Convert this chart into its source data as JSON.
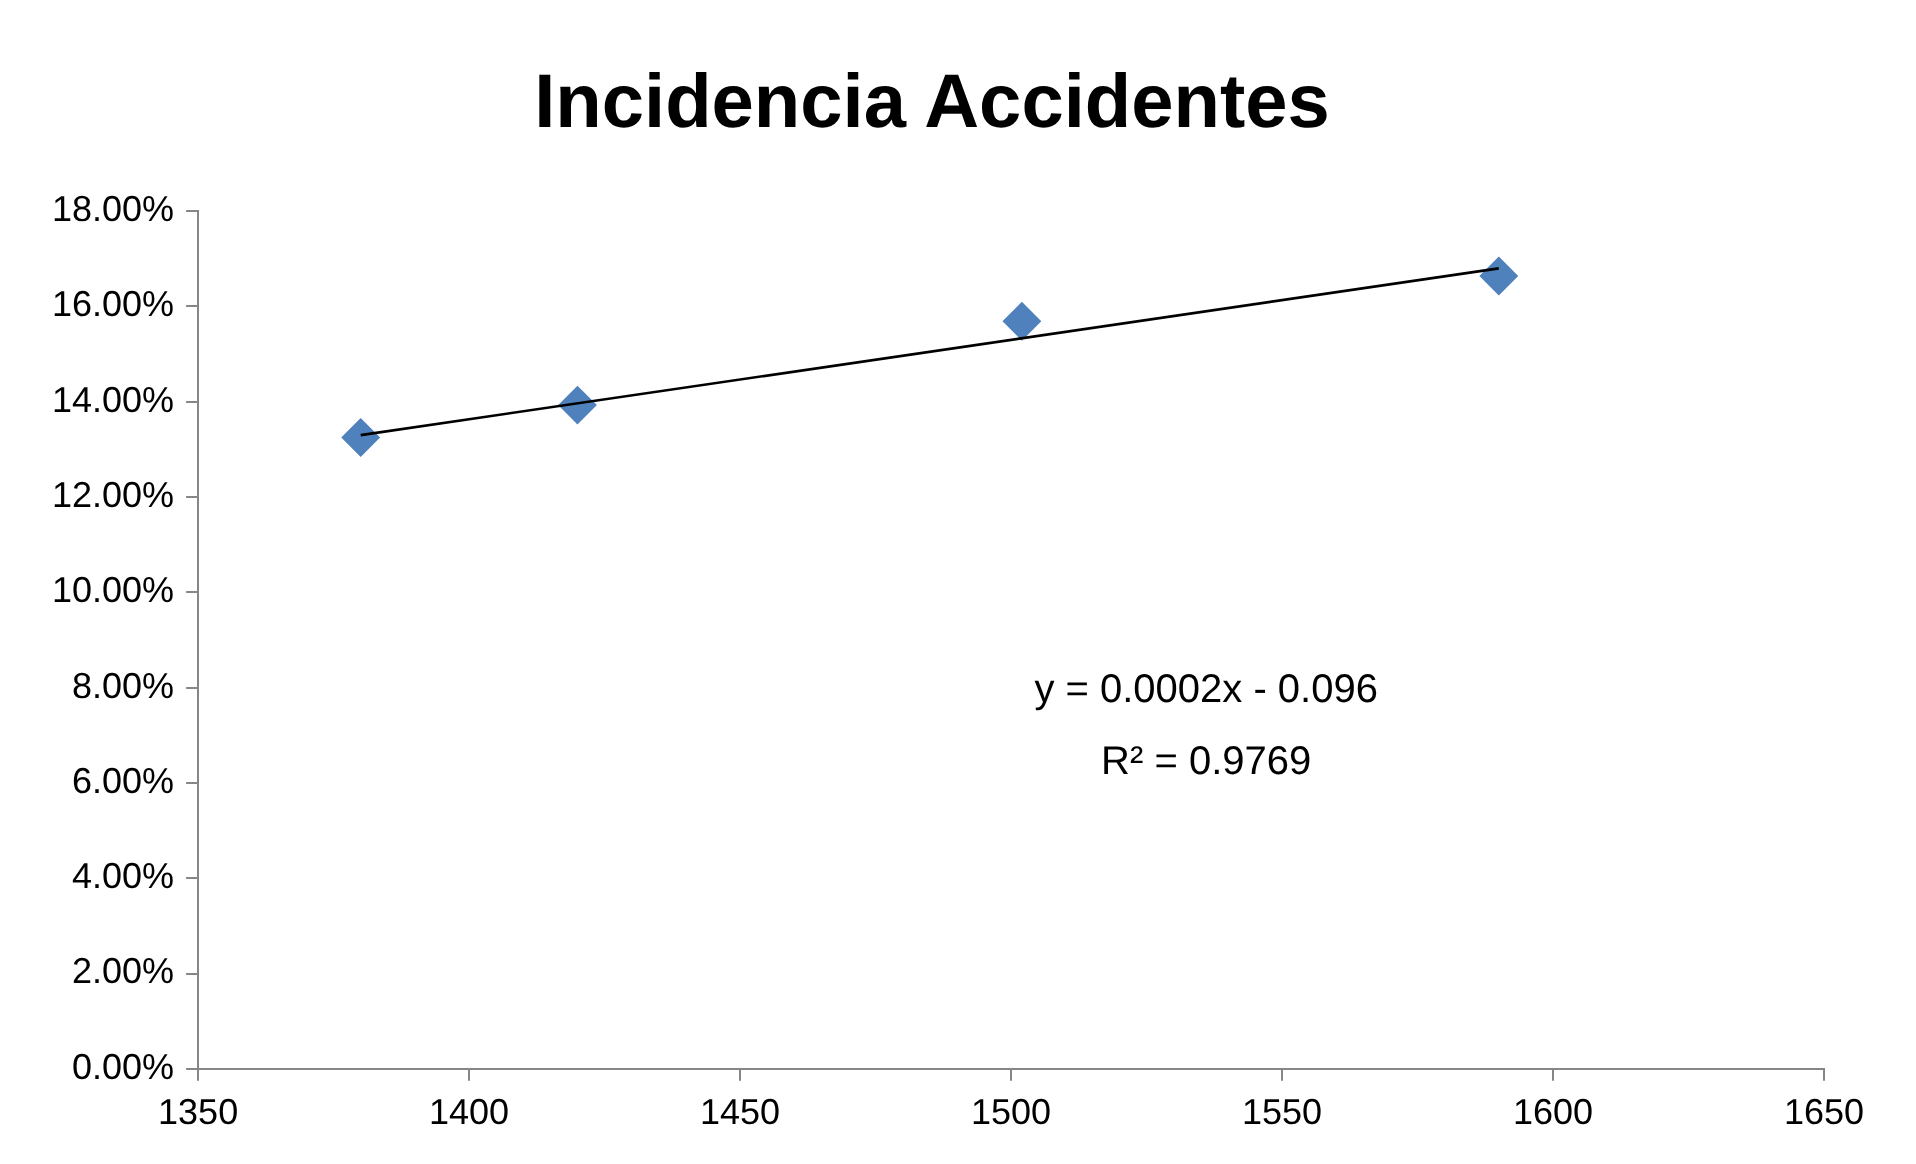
{
  "chart_data": {
    "type": "scatter",
    "title": "Incidencia Accidentes",
    "annotations": [
      "y = 0.0002x - 0.096",
      "R² = 0.9769"
    ],
    "series": [
      {
        "color": "#4f81bd",
        "marker": "diamond",
        "x": [
          1380,
          1420,
          1502,
          1590
        ],
        "values": [
          13.25,
          13.93,
          15.69,
          16.64
        ]
      },
      {
        "type": "line",
        "color": "#000000",
        "marker": "none",
        "line_style": "solid",
        "x": [
          1380,
          1590
        ],
        "values": [
          13.3,
          16.8
        ]
      }
    ],
    "xlim": [
      1350,
      1650
    ],
    "xticks": [
      1350,
      1400,
      1450,
      1500,
      1550,
      1600,
      1650
    ],
    "ylim": [
      0,
      18
    ],
    "yticks": [
      {
        "value": 0,
        "label": "0.00%"
      },
      {
        "value": 2,
        "label": "2.00%"
      },
      {
        "value": 4,
        "label": "4.00%"
      },
      {
        "value": 6,
        "label": "6.00%"
      },
      {
        "value": 8,
        "label": "8.00%"
      },
      {
        "value": 10,
        "label": "10.00%"
      },
      {
        "value": 12,
        "label": "12.00%"
      },
      {
        "value": 14,
        "label": "14.00%"
      },
      {
        "value": 16,
        "label": "16.00%"
      },
      {
        "value": 18,
        "label": "18.00%"
      }
    ],
    "grid": false,
    "legend": false
  }
}
